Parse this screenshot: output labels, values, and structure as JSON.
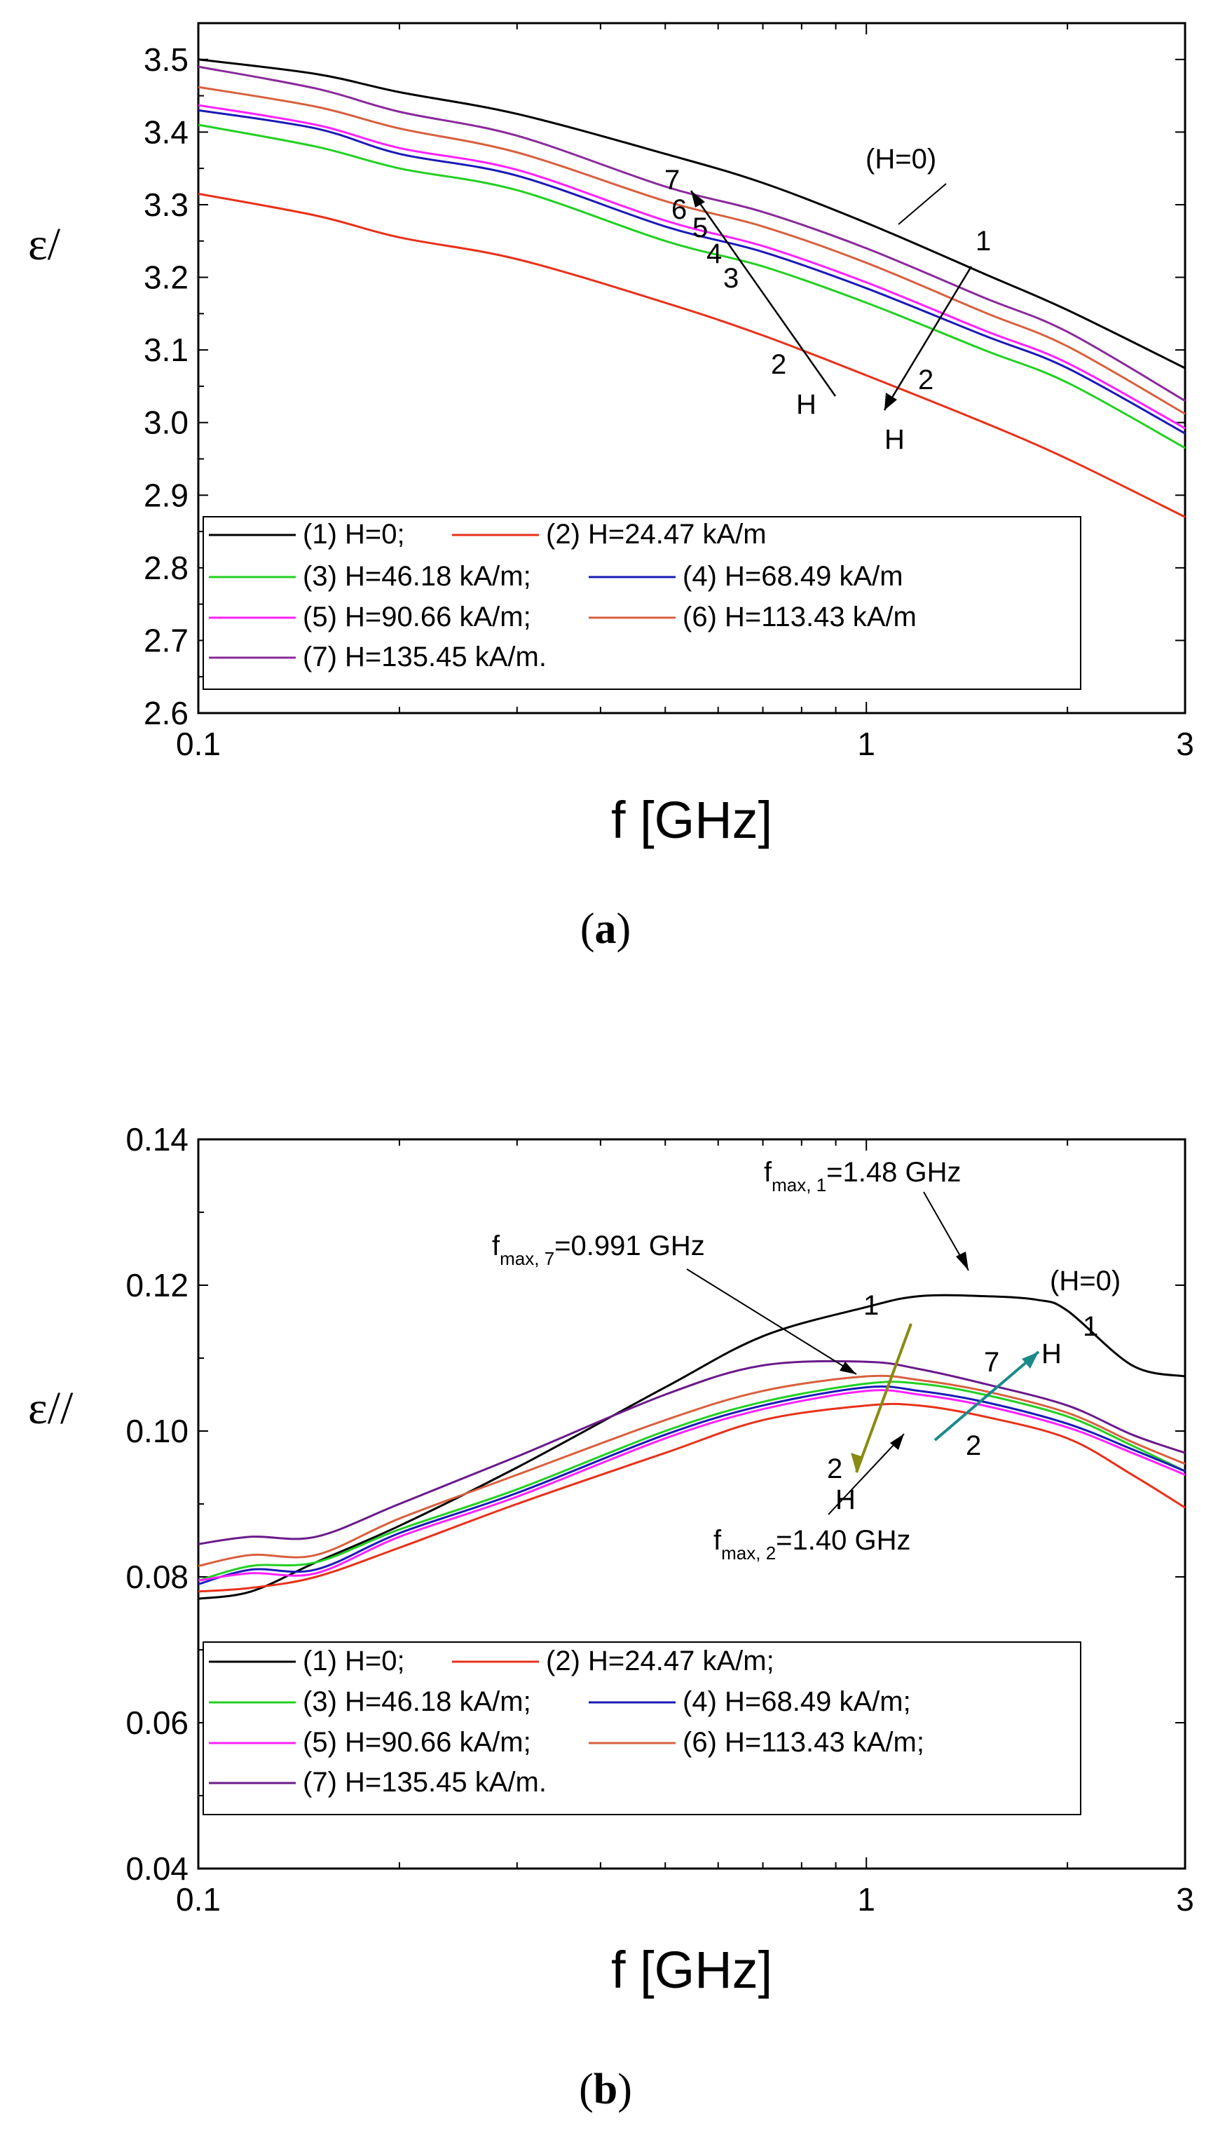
{
  "chart_data": [
    {
      "panel": "(a)",
      "type": "line",
      "xscale": "log",
      "xlabel": "f [GHz]",
      "ylabel": "ε/",
      "xlim": [
        0.1,
        3
      ],
      "ylim": [
        2.6,
        3.55
      ],
      "xticks": [
        "0.1",
        "1",
        "3"
      ],
      "yticks": [
        "2.6",
        "2.7",
        "2.8",
        "2.9",
        "3.0",
        "3.1",
        "3.2",
        "3.3",
        "3.4",
        "3.5"
      ],
      "series": [
        {
          "name": "(1) H=0;",
          "color": "#000000",
          "x": [
            0.1,
            0.15,
            0.2,
            0.3,
            0.5,
            0.7,
            1.0,
            1.5,
            2.0,
            3.0
          ],
          "y": [
            3.5,
            3.48,
            3.455,
            3.425,
            3.37,
            3.33,
            3.275,
            3.205,
            3.155,
            3.075
          ]
        },
        {
          "name": "(2) H=24.47 kA/m",
          "color": "#e8311a",
          "x": [
            0.1,
            0.15,
            0.2,
            0.3,
            0.5,
            0.7,
            1.0,
            1.5,
            2.0,
            3.0
          ],
          "y": [
            3.315,
            3.285,
            3.255,
            3.225,
            3.165,
            3.12,
            3.065,
            3.0,
            2.95,
            2.87
          ]
        },
        {
          "name": "(3) H=46.18 kA/m;",
          "color": "#22d022",
          "x": [
            0.1,
            0.15,
            0.2,
            0.3,
            0.5,
            0.7,
            1.0,
            1.5,
            2.0,
            3.0
          ],
          "y": [
            3.41,
            3.38,
            3.35,
            3.32,
            3.25,
            3.215,
            3.165,
            3.1,
            3.055,
            2.965
          ]
        },
        {
          "name": "(4) H=68.49 kA/m",
          "color": "#1a1ab8",
          "x": [
            0.1,
            0.15,
            0.2,
            0.3,
            0.5,
            0.7,
            1.0,
            1.5,
            2.0,
            3.0
          ],
          "y": [
            3.43,
            3.405,
            3.37,
            3.34,
            3.27,
            3.235,
            3.185,
            3.12,
            3.075,
            2.985
          ]
        },
        {
          "name": "(5) H=90.66 kA/m;",
          "color": "#ff20ff",
          "x": [
            0.1,
            0.15,
            0.2,
            0.3,
            0.5,
            0.7,
            1.0,
            1.5,
            2.0,
            3.0
          ],
          "y": [
            3.437,
            3.41,
            3.378,
            3.348,
            3.278,
            3.243,
            3.193,
            3.127,
            3.082,
            2.992
          ]
        },
        {
          "name": "(6) H=113.43 kA/m",
          "color": "#d8603e",
          "x": [
            0.1,
            0.15,
            0.2,
            0.3,
            0.5,
            0.7,
            1.0,
            1.5,
            2.0,
            3.0
          ],
          "y": [
            3.462,
            3.435,
            3.405,
            3.372,
            3.305,
            3.27,
            3.22,
            3.152,
            3.105,
            3.012
          ]
        },
        {
          "name": "(7) H=135.45 kA/m.",
          "color": "#8a2a9a",
          "x": [
            0.1,
            0.15,
            0.2,
            0.3,
            0.5,
            0.7,
            1.0,
            1.5,
            2.0,
            3.0
          ],
          "y": [
            3.49,
            3.46,
            3.428,
            3.395,
            3.325,
            3.29,
            3.24,
            3.172,
            3.125,
            3.03
          ]
        }
      ],
      "annotations": {
        "h0": "(H=0)",
        "n1": "1",
        "n2a": "2",
        "ha": "H",
        "n7": "7",
        "n6": "6",
        "n5": "5",
        "n4": "4",
        "n3": "3",
        "n2b": "2",
        "hb": "H"
      },
      "caption_letter": "a"
    },
    {
      "panel": "(b)",
      "type": "line",
      "xscale": "log",
      "xlabel": "f [GHz]",
      "ylabel": "ε//",
      "xlim": [
        0.1,
        3
      ],
      "ylim": [
        0.04,
        0.14
      ],
      "xticks": [
        "0.1",
        "1",
        "3"
      ],
      "yticks": [
        "0.04",
        "0.06",
        "0.08",
        "0.10",
        "0.12",
        "0.14"
      ],
      "series": [
        {
          "name": "(1) H=0;",
          "color": "#000000",
          "x": [
            0.1,
            0.12,
            0.15,
            0.2,
            0.3,
            0.5,
            0.7,
            1.0,
            1.2,
            1.5,
            1.8,
            2.0,
            2.5,
            3.0
          ],
          "y": [
            0.077,
            0.078,
            0.082,
            0.087,
            0.095,
            0.106,
            0.113,
            0.117,
            0.1185,
            0.1185,
            0.118,
            0.1165,
            0.109,
            0.1075
          ]
        },
        {
          "name": "(2) H=24.47 kA/m;",
          "color": "#e8311a",
          "x": [
            0.1,
            0.12,
            0.15,
            0.2,
            0.3,
            0.5,
            0.7,
            1.0,
            1.2,
            1.5,
            2.0,
            2.5,
            3.0
          ],
          "y": [
            0.078,
            0.0785,
            0.08,
            0.084,
            0.09,
            0.097,
            0.1015,
            0.1035,
            0.1035,
            0.102,
            0.099,
            0.094,
            0.0895
          ]
        },
        {
          "name": "(3) H=46.18 kA/m;",
          "color": "#22d022",
          "x": [
            0.1,
            0.12,
            0.15,
            0.2,
            0.3,
            0.5,
            0.7,
            1.0,
            1.2,
            1.5,
            2.0,
            2.5,
            3.0
          ],
          "y": [
            0.0795,
            0.0815,
            0.082,
            0.0865,
            0.092,
            0.1,
            0.104,
            0.1065,
            0.1065,
            0.105,
            0.102,
            0.098,
            0.0945
          ]
        },
        {
          "name": "(4) H=68.49 kA/m;",
          "color": "#1a1ab8",
          "x": [
            0.1,
            0.12,
            0.15,
            0.2,
            0.3,
            0.5,
            0.7,
            1.0,
            1.2,
            1.5,
            2.0,
            2.5,
            3.0
          ],
          "y": [
            0.079,
            0.081,
            0.081,
            0.086,
            0.0915,
            0.0995,
            0.1035,
            0.106,
            0.1055,
            0.104,
            0.101,
            0.0975,
            0.0945
          ]
        },
        {
          "name": "(5) H=90.66 kA/m;",
          "color": "#ff20ff",
          "x": [
            0.1,
            0.12,
            0.15,
            0.2,
            0.3,
            0.5,
            0.7,
            1.0,
            1.2,
            1.5,
            2.0,
            2.5,
            3.0
          ],
          "y": [
            0.0795,
            0.0805,
            0.0805,
            0.0855,
            0.091,
            0.099,
            0.103,
            0.1055,
            0.105,
            0.1035,
            0.1005,
            0.097,
            0.094
          ]
        },
        {
          "name": "(6) H=113.43 kA/m;",
          "color": "#d8603e",
          "x": [
            0.1,
            0.12,
            0.15,
            0.2,
            0.3,
            0.5,
            0.7,
            1.0,
            1.2,
            1.5,
            2.0,
            2.5,
            3.0
          ],
          "y": [
            0.0815,
            0.083,
            0.083,
            0.088,
            0.094,
            0.1015,
            0.1055,
            0.1075,
            0.107,
            0.1055,
            0.1025,
            0.0985,
            0.0955
          ]
        },
        {
          "name": "(7) H=135.45 kA/m.",
          "color": "#6a1a8a",
          "x": [
            0.1,
            0.12,
            0.15,
            0.2,
            0.3,
            0.5,
            0.7,
            1.0,
            1.2,
            1.5,
            2.0,
            2.5,
            3.0
          ],
          "y": [
            0.0845,
            0.0855,
            0.0855,
            0.09,
            0.0965,
            0.105,
            0.109,
            0.1095,
            0.1085,
            0.1065,
            0.1035,
            0.0995,
            0.097
          ]
        }
      ],
      "annotations": {
        "fmax1_main": "f",
        "fmax1_sub": "max, 1",
        "fmax1_val": "=1.48 GHz",
        "fmax7_main": "f",
        "fmax7_sub": "max, 7",
        "fmax7_val": "=0.991 GHz",
        "fmax2_main": "f",
        "fmax2_sub": "max, 2",
        "fmax2_val": "=1.40 GHz",
        "h0": "(H=0)",
        "r1": "1",
        "n1": "1",
        "n2a": "2",
        "ha": "H",
        "n7": "7",
        "hb": "H",
        "n2b": "2",
        "arrow_down_color": "#8a8a10",
        "arrow_up_color": "#1a8a8a"
      },
      "caption_letter": "b"
    }
  ]
}
